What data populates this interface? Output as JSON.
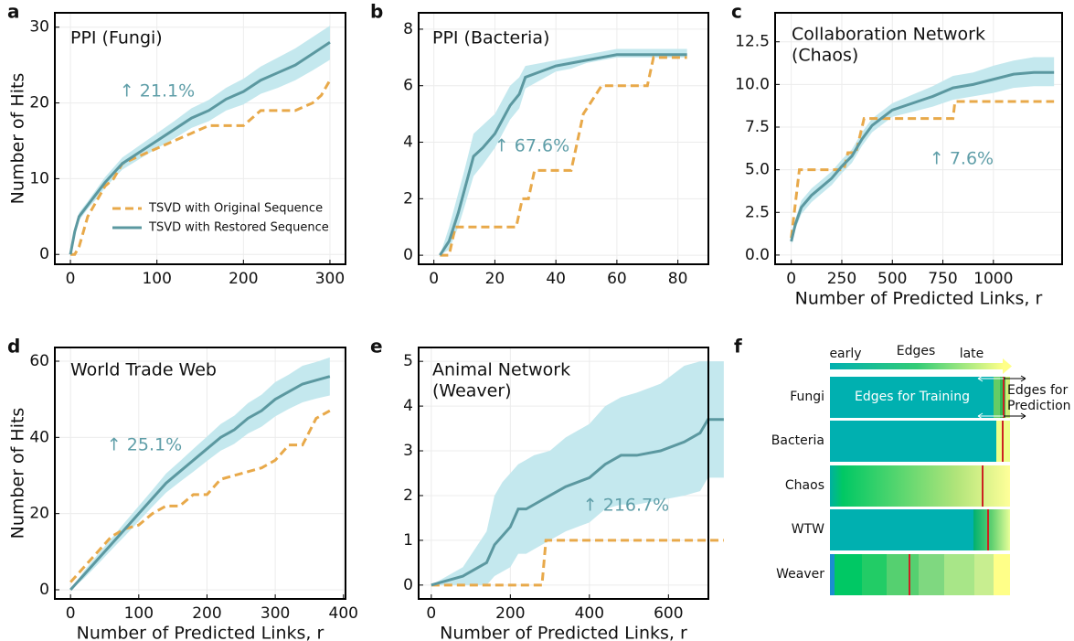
{
  "chart_data": [
    {
      "type": "line",
      "panel": "a",
      "title": [
        "PPI (Fungi)"
      ],
      "ylabel": "Number of Hits",
      "annotation": "↑ 21.1%",
      "xlim": [
        -18,
        318
      ],
      "xticks": [
        0,
        100,
        200,
        300
      ],
      "ylim": [
        -1.3,
        31.9
      ],
      "yticks": [
        0,
        10,
        20,
        30
      ],
      "grid": true,
      "legend": "lower right",
      "series": [
        {
          "name": "TSVD with Original Sequence",
          "color": "#e8a94a",
          "dash": true,
          "x": [
            0,
            5,
            10,
            15,
            20,
            30,
            40,
            50,
            60,
            80,
            100,
            120,
            140,
            160,
            180,
            200,
            220,
            240,
            260,
            280,
            290,
            295,
            300
          ],
          "values": [
            0,
            0,
            1,
            3,
            5,
            7,
            9,
            10,
            12,
            13,
            14,
            15,
            16,
            17,
            17,
            17,
            19,
            19,
            19,
            20,
            21,
            22,
            23
          ]
        },
        {
          "name": "TSVD with Restored Sequence",
          "color": "#5b98a0",
          "band_color": "#c4e8ee",
          "x": [
            0,
            5,
            10,
            20,
            30,
            40,
            60,
            80,
            100,
            120,
            140,
            160,
            180,
            200,
            220,
            240,
            260,
            280,
            300
          ],
          "values": [
            0,
            3,
            5,
            6.5,
            8,
            9.5,
            12,
            13.5,
            15,
            16.5,
            18,
            19,
            20.5,
            21.5,
            23,
            24,
            25,
            26.5,
            28
          ],
          "lower": [
            0,
            2.5,
            4.5,
            6,
            7.3,
            8.8,
            11.2,
            12.6,
            14,
            15.3,
            16.7,
            17.6,
            19,
            19.8,
            21.2,
            22,
            23,
            24.3,
            25.7
          ],
          "upper": [
            0,
            3.5,
            5.5,
            7,
            8.6,
            10.2,
            12.8,
            14.4,
            16,
            17.6,
            19.3,
            20.4,
            22,
            23.2,
            24.8,
            26,
            27.2,
            28.7,
            30.2
          ]
        }
      ]
    },
    {
      "type": "line",
      "panel": "b",
      "title": [
        "PPI (Bacteria)"
      ],
      "annotation": "↑ 67.6%",
      "xlim": [
        -5,
        90
      ],
      "xticks": [
        0,
        20,
        40,
        60,
        80
      ],
      "ylim": [
        -0.32,
        8.58
      ],
      "yticks": [
        0,
        2,
        4,
        6,
        8
      ],
      "grid": true,
      "series": [
        {
          "color": "#e8a94a",
          "dash": true,
          "x": [
            2,
            5,
            7,
            10,
            15,
            20,
            27,
            29,
            31,
            33,
            40,
            45,
            47,
            49,
            55,
            57,
            65,
            70,
            72,
            80,
            83
          ],
          "values": [
            0,
            0,
            1,
            1,
            1,
            1,
            1,
            2,
            2,
            3,
            3,
            3,
            4,
            5,
            6,
            6,
            6,
            6,
            7,
            7,
            7
          ]
        },
        {
          "color": "#5b98a0",
          "band_color": "#c4e8ee",
          "x": [
            2,
            5,
            8,
            10,
            13,
            16,
            20,
            25,
            28,
            30,
            35,
            40,
            45,
            50,
            55,
            60,
            70,
            83
          ],
          "values": [
            0,
            0.5,
            1.5,
            2.3,
            3.5,
            3.8,
            4.3,
            5.3,
            5.7,
            6.3,
            6.5,
            6.7,
            6.8,
            6.9,
            7,
            7.1,
            7.1,
            7.1
          ],
          "lower": [
            0,
            0.2,
            1,
            1.7,
            2.8,
            3.2,
            3.8,
            4.8,
            5.2,
            5.9,
            6.2,
            6.5,
            6.6,
            6.8,
            6.9,
            7,
            7,
            7
          ],
          "upper": [
            0,
            1,
            2.2,
            3,
            4.3,
            4.6,
            5,
            6,
            6.3,
            6.7,
            6.8,
            6.9,
            7,
            7.1,
            7.2,
            7.3,
            7.3,
            7.3
          ]
        }
      ]
    },
    {
      "type": "line",
      "panel": "c",
      "title": [
        "Collaboration Network",
        "(Chaos)"
      ],
      "xlabel": "Number of Predicted Links, r",
      "annotation": "↑ 7.6%",
      "xlim": [
        -80,
        1340
      ],
      "xticks": [
        0,
        250,
        500,
        750,
        1000
      ],
      "ylim": [
        -0.54,
        14.2
      ],
      "yticks": [
        {
          "value": 0,
          "label": "0.0"
        },
        2.5,
        {
          "value": 5,
          "label": "5.0"
        },
        7.5,
        {
          "value": 10,
          "label": "10.0"
        },
        12.5
      ],
      "grid": true,
      "series": [
        {
          "color": "#e8a94a",
          "dash": true,
          "x": [
            0,
            10,
            20,
            40,
            260,
            280,
            320,
            340,
            360,
            800,
            810,
            1300
          ],
          "values": [
            1,
            2,
            3,
            5,
            5,
            6,
            6,
            7,
            8,
            8,
            9,
            9
          ]
        },
        {
          "color": "#5b98a0",
          "band_color": "#c4e8ee",
          "x": [
            0,
            20,
            50,
            100,
            150,
            200,
            250,
            300,
            350,
            400,
            500,
            600,
            700,
            800,
            900,
            1000,
            1100,
            1200,
            1300
          ],
          "values": [
            0.8,
            1.8,
            2.8,
            3.5,
            4.0,
            4.5,
            5.2,
            5.8,
            6.8,
            7.6,
            8.5,
            8.9,
            9.3,
            9.8,
            10.0,
            10.3,
            10.6,
            10.7,
            10.7
          ],
          "lower": [
            0.6,
            1.5,
            2.4,
            3.1,
            3.6,
            4.1,
            4.8,
            5.4,
            6.4,
            7.2,
            8.1,
            8.4,
            8.7,
            9.1,
            9.3,
            9.5,
            9.8,
            9.9,
            9.9
          ],
          "upper": [
            1.0,
            2.1,
            3.2,
            3.9,
            4.4,
            4.9,
            5.6,
            6.2,
            7.2,
            8.0,
            8.9,
            9.4,
            9.9,
            10.5,
            10.7,
            11.1,
            11.4,
            11.6,
            11.6
          ]
        }
      ]
    },
    {
      "type": "line",
      "panel": "d",
      "title": [
        "World Trade Web"
      ],
      "ylabel": "Number of Hits",
      "xlabel": "Number of Predicted Links, r",
      "annotation": "↑ 25.1%",
      "xlim": [
        -23,
        403
      ],
      "xticks": [
        0,
        100,
        200,
        300,
        400
      ],
      "ylim": [
        -2.4,
        63.6
      ],
      "yticks": [
        0,
        20,
        40,
        60
      ],
      "grid": true,
      "series": [
        {
          "color": "#e8a94a",
          "dash": true,
          "x": [
            0,
            20,
            40,
            60,
            80,
            100,
            120,
            140,
            160,
            180,
            200,
            220,
            240,
            260,
            280,
            300,
            320,
            340,
            360,
            380
          ],
          "values": [
            2,
            6,
            10,
            14,
            16,
            17,
            20,
            22,
            22,
            25,
            25,
            29,
            30,
            31,
            32,
            34,
            38,
            38,
            45,
            47
          ]
        },
        {
          "color": "#5b98a0",
          "band_color": "#c4e8ee",
          "x": [
            0,
            20,
            40,
            60,
            80,
            100,
            120,
            140,
            160,
            180,
            200,
            220,
            240,
            260,
            280,
            300,
            320,
            340,
            360,
            380
          ],
          "values": [
            0,
            4,
            8,
            12,
            16,
            20,
            24,
            28,
            31,
            34,
            37,
            40,
            42,
            45,
            47,
            50,
            52,
            54,
            55,
            56
          ],
          "lower": [
            0,
            3,
            6.7,
            10.5,
            14.2,
            18,
            21.8,
            25.5,
            28.3,
            31,
            33.8,
            36.5,
            38.3,
            41,
            42.8,
            45.5,
            47.5,
            49.2,
            50.2,
            51
          ],
          "upper": [
            0,
            5,
            9.3,
            13.5,
            17.8,
            22,
            26.2,
            30.5,
            33.7,
            37,
            40.2,
            43.5,
            45.7,
            49,
            51.2,
            54.5,
            56.5,
            58.8,
            59.8,
            61
          ]
        }
      ]
    },
    {
      "type": "line",
      "panel": "e",
      "title": [
        "Animal Network",
        "(Weaver)"
      ],
      "xlabel": "Number of Predicted Links, r",
      "annotation": "↑ 216.7%",
      "xlim": [
        -32,
        701
      ],
      "xticks": [
        0,
        200,
        400,
        600
      ],
      "ylim": [
        -0.31,
        5.31
      ],
      "yticks": [
        0,
        1,
        2,
        3,
        4,
        5
      ],
      "grid": true,
      "series": [
        {
          "color": "#e8a94a",
          "dash": true,
          "x": [
            0,
            80,
            280,
            290,
            300,
            740
          ],
          "values": [
            0,
            0,
            0,
            1,
            1,
            1
          ]
        },
        {
          "color": "#5b98a0",
          "band_color": "#c4e8ee",
          "x": [
            0,
            80,
            140,
            160,
            180,
            200,
            220,
            240,
            260,
            300,
            340,
            400,
            440,
            480,
            520,
            580,
            640,
            680,
            700,
            740
          ],
          "values": [
            0,
            0.2,
            0.5,
            0.9,
            1.1,
            1.3,
            1.7,
            1.7,
            1.8,
            2.0,
            2.2,
            2.4,
            2.7,
            2.9,
            2.9,
            3.0,
            3.2,
            3.4,
            3.7,
            3.7
          ],
          "lower": [
            0,
            0,
            0,
            0.2,
            0.3,
            0.4,
            0.7,
            0.7,
            0.8,
            1,
            1.2,
            1.4,
            1.7,
            1.8,
            1.8,
            1.9,
            2,
            2.1,
            2.4,
            2.4
          ],
          "upper": [
            0,
            0.4,
            1.2,
            2,
            2.3,
            2.5,
            2.7,
            2.8,
            2.9,
            3,
            3.3,
            3.6,
            4,
            4.2,
            4.3,
            4.5,
            4.9,
            5,
            5,
            5
          ]
        }
      ]
    }
  ],
  "diagram": {
    "panel": "f",
    "axis": {
      "early": "early",
      "title": "Edges",
      "late": "late"
    },
    "rows": [
      "Fungi",
      "Bacteria",
      "Chaos",
      "WTW",
      "Weaver"
    ],
    "training_label": "Edges for Training",
    "prediction_label": [
      "Edges for",
      "Prediction"
    ]
  }
}
